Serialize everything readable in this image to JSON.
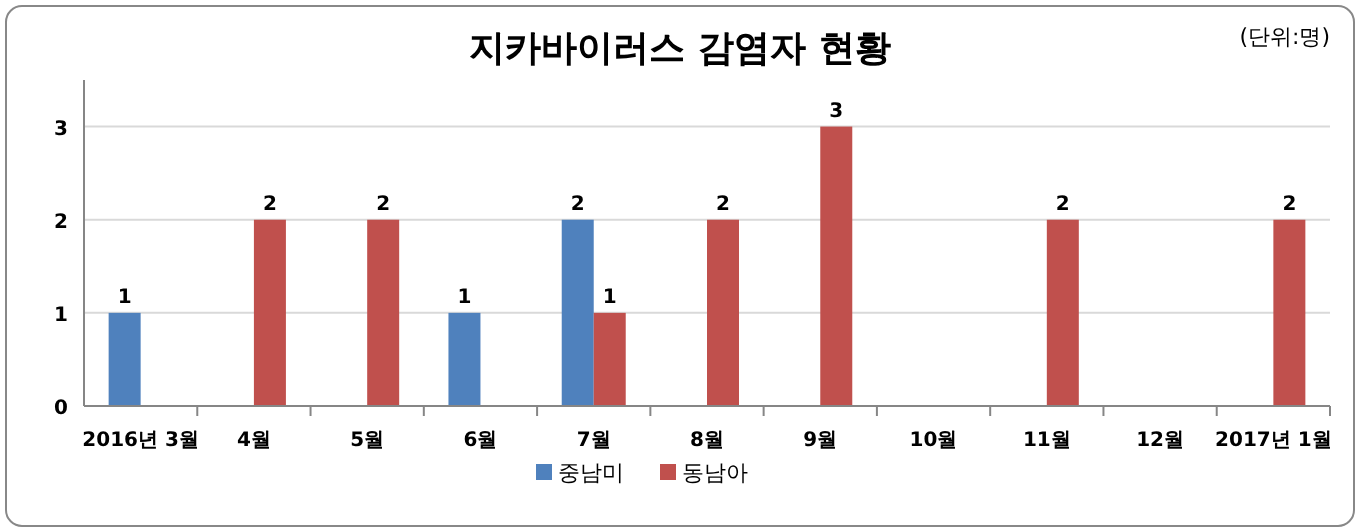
{
  "chart_data": {
    "type": "bar",
    "title": "지카바이러스 감염자 현황",
    "annotations": [
      "(단위:명)"
    ],
    "categories": [
      "2016년 3월",
      "4월",
      "5월",
      "6월",
      "7월",
      "8월",
      "9월",
      "10월",
      "11월",
      "12월",
      "2017년 1월"
    ],
    "series": [
      {
        "name": "중남미",
        "color": "#4f81bd",
        "values": [
          1,
          null,
          null,
          1,
          2,
          null,
          null,
          null,
          null,
          null,
          null
        ]
      },
      {
        "name": "동남아",
        "color": "#c0504d",
        "values": [
          null,
          2,
          2,
          null,
          1,
          2,
          3,
          null,
          2,
          null,
          2
        ]
      }
    ],
    "ylim": [
      0,
      3.5
    ],
    "yticks": [
      0,
      1,
      2,
      3
    ],
    "grid": "y",
    "legend": "bottom",
    "data_labels": true
  }
}
